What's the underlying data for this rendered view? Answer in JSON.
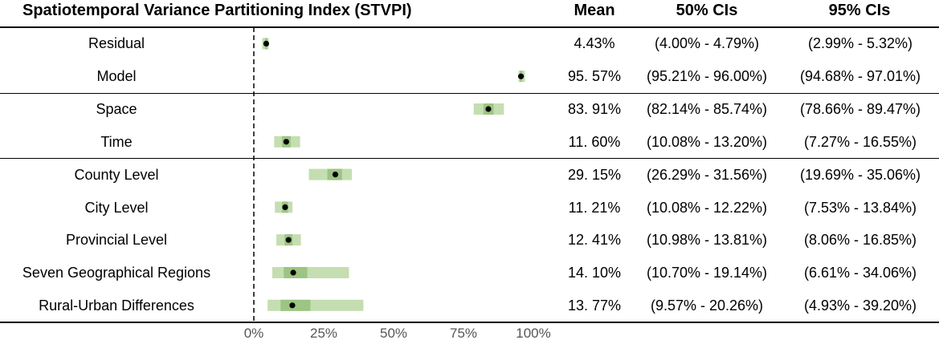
{
  "header": {
    "title": "Spatiotemporal Variance Partitioning Index (STVPI)",
    "mean": "Mean",
    "ci50": "50% CIs",
    "ci95": "95% CIs"
  },
  "colors": {
    "ci95_fill": "#c5deb1",
    "ci50_fill": "#9cc583",
    "point": "#000000",
    "zero_line": "#000000"
  },
  "rows": [
    {
      "label": "Residual",
      "mean_text": "4.43%",
      "ci50_text": "(4.00% - 4.79%)",
      "ci95_text": "(2.99% - 5.32%)"
    },
    {
      "label": "Model",
      "mean_text": "95. 57%",
      "ci50_text": "(95.21% - 96.00%)",
      "ci95_text": "(94.68% - 97.01%)"
    },
    {
      "label": "Space",
      "mean_text": "83. 91%",
      "ci50_text": "(82.14% - 85.74%)",
      "ci95_text": "(78.66% - 89.47%)"
    },
    {
      "label": "Time",
      "mean_text": "11. 60%",
      "ci50_text": "(10.08% - 13.20%)",
      "ci95_text": "(7.27% - 16.55%)"
    },
    {
      "label": "County Level",
      "mean_text": "29. 15%",
      "ci50_text": "(26.29% - 31.56%)",
      "ci95_text": "(19.69% - 35.06%)"
    },
    {
      "label": "City Level",
      "mean_text": "11. 21%",
      "ci50_text": "(10.08% - 12.22%)",
      "ci95_text": "(7.53% - 13.84%)"
    },
    {
      "label": "Provincial Level",
      "mean_text": "12. 41%",
      "ci50_text": "(10.98% - 13.81%)",
      "ci95_text": "(8.06% - 16.85%)"
    },
    {
      "label": "Seven Geographical Regions",
      "mean_text": "14. 10%",
      "ci50_text": "(10.70% - 19.14%)",
      "ci95_text": "(6.61% - 34.06%)"
    },
    {
      "label": "Rural-Urban Differences",
      "mean_text": "13. 77%",
      "ci50_text": "(9.57% - 20.26%)",
      "ci95_text": "(4.93% - 39.20%)"
    }
  ],
  "chart_data": {
    "type": "forest",
    "title": "Spatiotemporal Variance Partitioning Index (STVPI)",
    "xlabel": "",
    "ylabel": "",
    "xlim": [
      0,
      100
    ],
    "x_ticks": [
      0,
      25,
      50,
      75,
      100
    ],
    "x_tick_labels": [
      "0%",
      "25%",
      "50%",
      "75%",
      "100%"
    ],
    "reference_line": 0,
    "categories": [
      "Residual",
      "Model",
      "Space",
      "Time",
      "County Level",
      "City Level",
      "Provincial Level",
      "Seven Geographical Regions",
      "Rural-Urban Differences"
    ],
    "mean": [
      4.43,
      95.57,
      83.91,
      11.6,
      29.15,
      11.21,
      12.41,
      14.1,
      13.77
    ],
    "ci50": [
      [
        4.0,
        4.79
      ],
      [
        95.21,
        96.0
      ],
      [
        82.14,
        85.74
      ],
      [
        10.08,
        13.2
      ],
      [
        26.29,
        31.56
      ],
      [
        10.08,
        12.22
      ],
      [
        10.98,
        13.81
      ],
      [
        10.7,
        19.14
      ],
      [
        9.57,
        20.26
      ]
    ],
    "ci95": [
      [
        2.99,
        5.32
      ],
      [
        94.68,
        97.01
      ],
      [
        78.66,
        89.47
      ],
      [
        7.27,
        16.55
      ],
      [
        19.69,
        35.06
      ],
      [
        7.53,
        13.84
      ],
      [
        8.06,
        16.85
      ],
      [
        6.61,
        34.06
      ],
      [
        4.93,
        39.2
      ]
    ],
    "groups": [
      [
        "Residual",
        "Model"
      ],
      [
        "Space",
        "Time"
      ],
      [
        "County Level",
        "City Level",
        "Provincial Level",
        "Seven Geographical Regions",
        "Rural-Urban Differences"
      ]
    ]
  }
}
